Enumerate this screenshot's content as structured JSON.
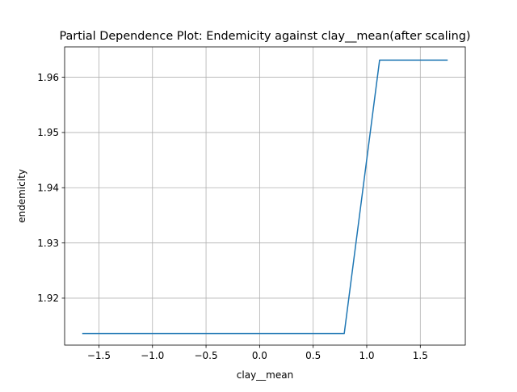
{
  "chart_data": {
    "type": "line",
    "title": "Partial Dependence Plot: Endemicity against clay__mean(after scaling)",
    "xlabel": "clay__mean",
    "ylabel": "endemicity",
    "xlim": [
      -1.82,
      1.92
    ],
    "ylim": [
      1.9115,
      1.9655
    ],
    "xticks": [
      -1.5,
      -1.0,
      -0.5,
      0.0,
      0.5,
      1.0,
      1.5
    ],
    "xtick_labels": [
      "−1.5",
      "−1.0",
      "−0.5",
      "0.0",
      "0.5",
      "1.0",
      "1.5"
    ],
    "yticks": [
      1.92,
      1.93,
      1.94,
      1.95,
      1.96
    ],
    "ytick_labels": [
      "1.92",
      "1.93",
      "1.94",
      "1.95",
      "1.96"
    ],
    "grid": true,
    "series": [
      {
        "color": "#1f77b4",
        "x": [
          -1.65,
          0.79,
          1.12,
          1.75
        ],
        "y": [
          1.9136,
          1.9136,
          1.9631,
          1.9631
        ]
      }
    ]
  }
}
